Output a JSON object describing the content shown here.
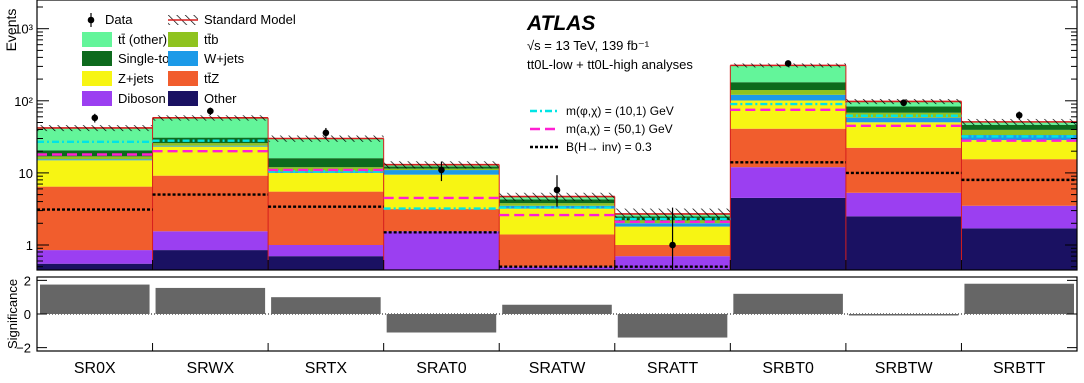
{
  "chart_data": {
    "type": "bar",
    "stacked": true,
    "categories": [
      "SR0X",
      "SRWX",
      "SRTX",
      "SRAT0",
      "SRATW",
      "SRATT",
      "SRBT0",
      "SRBTW",
      "SRBTT"
    ],
    "top_panel": {
      "ylabel": "Events",
      "yscale": "log",
      "ylim": [
        0.45,
        2500
      ],
      "tick_labels": [
        {
          "value": 1,
          "text": "1"
        },
        {
          "value": 10,
          "text": "10"
        },
        {
          "value": 100,
          "text": "10²"
        },
        {
          "value": 1000,
          "text": "10³"
        }
      ]
    },
    "series": [
      {
        "name": "Other",
        "color": "#1a1162",
        "values": [
          0.55,
          0.85,
          0.7,
          0.45,
          0.45,
          0.45,
          4.5,
          2.5,
          1.7
        ]
      },
      {
        "name": "Diboson",
        "color": "#9b3ff1",
        "values": [
          0.3,
          0.7,
          0.3,
          1.1,
          0.05,
          0.25,
          7.5,
          2.8,
          1.8
        ]
      },
      {
        "name": "tt̄Z",
        "color": "#f15d2d",
        "values": [
          5.6,
          7.6,
          4.5,
          1.6,
          0.9,
          0.3,
          29,
          17,
          12
        ]
      },
      {
        "name": "Z+jets",
        "color": "#f7f513",
        "values": [
          8.5,
          14,
          4.5,
          6.3,
          1.8,
          0.8,
          60,
          28,
          13
        ]
      },
      {
        "name": "W+jets",
        "color": "#1c9ae8",
        "values": [
          0.5,
          0.7,
          0.5,
          1.5,
          0.3,
          0.2,
          20,
          8,
          5
        ]
      },
      {
        "name": "tt̄b",
        "color": "#8fc31f",
        "values": [
          1.5,
          2,
          1.5,
          0.5,
          0.3,
          0.2,
          20,
          10,
          6
        ]
      },
      {
        "name": "Single-top",
        "color": "#0d6a1d",
        "values": [
          3.5,
          5,
          4,
          0.8,
          0.5,
          0.3,
          40,
          15,
          7
        ]
      },
      {
        "name": "tt̄ (other)",
        "color": "#63f59a",
        "values": [
          21,
          27,
          14,
          0.7,
          0.35,
          0.15,
          130,
          15,
          3.7
        ]
      }
    ],
    "total": [
      42,
      58,
      30,
      13,
      4.7,
      2.7,
      310,
      98,
      51
    ],
    "uncertainty": [
      4,
      5,
      3,
      1.5,
      0.6,
      0.5,
      20,
      8,
      5
    ],
    "data": [
      58,
      72,
      36,
      11,
      5.8,
      1.0,
      330,
      94,
      63
    ],
    "data_err_low": [
      8,
      8.5,
      6,
      3.3,
      2.4,
      0.83,
      18,
      9.7,
      8
    ],
    "data_err_high": [
      8,
      8.5,
      6,
      3.3,
      3.5,
      2.3,
      18,
      9.7,
      8
    ],
    "signals": [
      {
        "name": "m(φ,χ) = (10,1) GeV",
        "color": "#00e5e5",
        "dash": "dashdot",
        "values": [
          27,
          28,
          10.5,
          3.2,
          3.3,
          2.3,
          90,
          62,
          32
        ]
      },
      {
        "name": "m(a,χ) = (50,1) GeV",
        "color": "#ff1fd2",
        "dash": "dash",
        "values": [
          18,
          20,
          11,
          4.5,
          2.6,
          2.1,
          75,
          45,
          28
        ]
      },
      {
        "name": "B(H→ inv) = 0.3",
        "color": "#000000",
        "dash": "dot",
        "values": [
          3.1,
          5,
          3.4,
          1.5,
          0.5,
          0.5,
          14,
          10,
          8
        ]
      }
    ],
    "legend": {
      "data": "Data",
      "model": "Standard Model",
      "items": [
        "tt̄ (other)",
        "tt̄b",
        "Single-top",
        "W+jets",
        "Z+jets",
        "tt̄Z",
        "Diboson",
        "Other"
      ],
      "placement": "top-left"
    },
    "annotation": {
      "title": "ATLAS",
      "line1": "√s = 13 TeV, 139 fb⁻¹",
      "line2": "tt0L-low + tt0L-high analyses"
    },
    "bottom_panel": {
      "ylabel": "Significance",
      "ylim": [
        -2.2,
        2.2
      ],
      "ticks": [
        -2,
        0,
        2
      ],
      "values": [
        1.75,
        1.55,
        1.0,
        -1.1,
        0.55,
        -1.4,
        1.2,
        -0.05,
        1.8
      ]
    },
    "colors": {
      "bar_significance": "#666666",
      "hatch": "#000000",
      "frame": "#000000"
    }
  }
}
